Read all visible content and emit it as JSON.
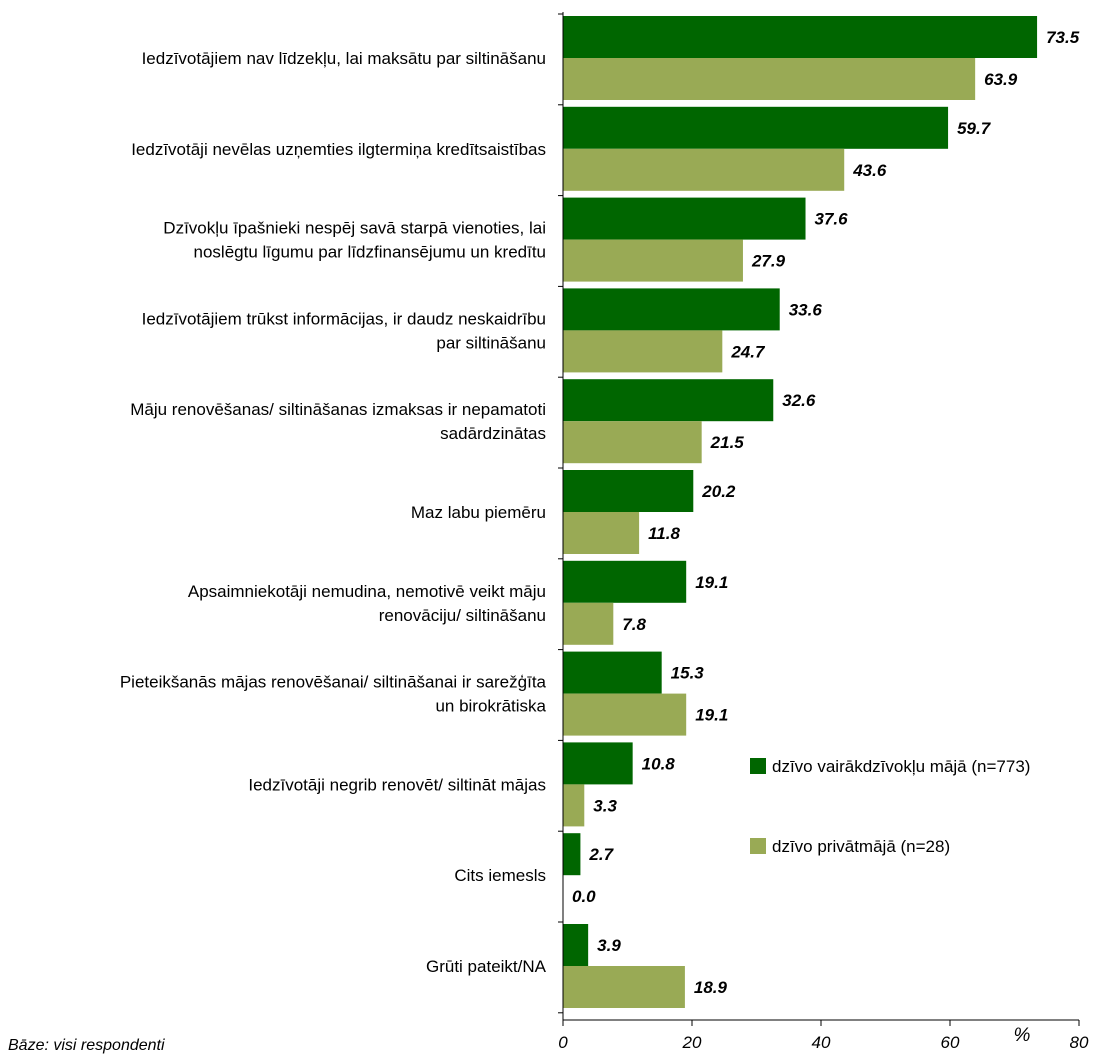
{
  "chart_data": {
    "type": "bar",
    "orientation": "horizontal",
    "categories": [
      [
        "Iedzīvotājiem nav līdzekļu, lai maksātu par siltināšanu"
      ],
      [
        "Iedzīvotāji nevēlas uzņemties ilgtermiņa kredītsaistības"
      ],
      [
        "Dzīvokļu īpašnieki nespēj savā starpā vienoties, lai",
        "noslēgtu līgumu par līdzfinansējumu un kredītu"
      ],
      [
        "Iedzīvotājiem trūkst informācijas, ir daudz neskaidrību",
        "par siltināšanu"
      ],
      [
        "Māju renovēšanas/ siltināšanas izmaksas ir nepamatoti",
        "sadārdzinātas"
      ],
      [
        "Maz labu piemēru"
      ],
      [
        "Apsaimniekotāji nemudina, nemotivē veikt māju",
        "renovāciju/ siltināšanu"
      ],
      [
        "Pieteikšanās mājas renovēšanai/ siltināšanai ir sarežģīta",
        "un birokrātiska"
      ],
      [
        "Iedzīvotāji negrib renovēt/ siltināt mājas"
      ],
      [
        "Cits iemesls"
      ],
      [
        "Grūti pateikt/NA"
      ]
    ],
    "series": [
      {
        "name": "dzīvo vairākdzīvokļu mājā (n=773)",
        "color": "#006600",
        "values": [
          73.5,
          59.7,
          37.6,
          33.6,
          32.6,
          20.2,
          19.1,
          15.3,
          10.8,
          2.7,
          3.9
        ],
        "labels": [
          "73.5",
          "59.7",
          "37.6",
          "33.6",
          "32.6",
          "20.2",
          "19.1",
          "15.3",
          "10.8",
          "2.7",
          "3.9"
        ]
      },
      {
        "name": "dzīvo privātmājā (n=28)",
        "color": "#99AA55",
        "values": [
          63.9,
          43.6,
          27.9,
          24.7,
          21.5,
          11.8,
          7.8,
          19.1,
          3.3,
          0.0,
          18.9
        ],
        "labels": [
          "63.9",
          "43.6",
          "27.9",
          "24.7",
          "21.5",
          "11.8",
          "7.8",
          "19.1",
          "3.3",
          "0.0",
          "18.9"
        ]
      }
    ],
    "xlim": [
      0,
      80
    ],
    "xticks": [
      "0",
      "20",
      "40",
      "60",
      "80"
    ],
    "xticks_values": [
      0,
      20,
      40,
      60,
      80
    ],
    "unit": "%",
    "grid": false,
    "legend_position": "right"
  },
  "footnote": "Bāze: visi respondenti"
}
